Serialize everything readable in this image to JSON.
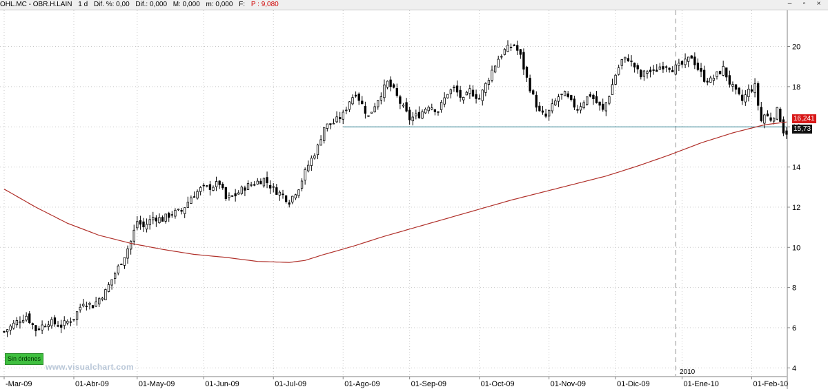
{
  "header": {
    "symbol": "OHL.MC - OBR.H.LAIN",
    "timeframe": "1 d",
    "dif_pct": "Dif. %: 0,00",
    "dif": "Dif.: 0,000",
    "max": "M: 0,000",
    "min": "m: 0,000",
    "f": "F:",
    "p": "P : 9,080"
  },
  "badges": {
    "no_orders": "Sin órdenes",
    "watermark": "www.visualchart.com",
    "year": "2010",
    "ma_value": "16,241",
    "last_value": "15,73"
  },
  "colors": {
    "candle_up": "#ffffff",
    "candle_down": "#000000",
    "moving_average": "#b0302a",
    "support_line": "#2a7f8f",
    "ma_tag": "#d81818",
    "last_tag": "#111111"
  },
  "chart_data": {
    "type": "candlestick",
    "ylim": [
      3.6,
      21.8
    ],
    "y_ticks": [
      "4",
      "6",
      "8",
      "10",
      "12",
      "14",
      "16",
      "18",
      "20"
    ],
    "x_ticks": [
      "-Mar-09",
      "01-Abr-09",
      "01-May-09",
      "01-Jun-09",
      "01-Jul-09",
      "01-Ago-09",
      "01-Sep-09",
      "01-Oct-09",
      "01-Nov-09",
      "01-Dic-09",
      "01-Ene-10",
      "01-Feb-10"
    ],
    "x_tick_index": [
      0,
      22,
      42,
      63,
      85,
      107,
      128,
      150,
      172,
      193,
      214,
      236
    ],
    "session_count": 248,
    "year_separator_index": 212,
    "close_path": [
      [
        0,
        5.8
      ],
      [
        4,
        6.3
      ],
      [
        7,
        6.6
      ],
      [
        10,
        5.9
      ],
      [
        14,
        6.3
      ],
      [
        18,
        6.1
      ],
      [
        22,
        6.5
      ],
      [
        25,
        7.3
      ],
      [
        28,
        7.1
      ],
      [
        32,
        7.8
      ],
      [
        35,
        8.7
      ],
      [
        38,
        9.6
      ],
      [
        40,
        10.3
      ],
      [
        42,
        11.3
      ],
      [
        44,
        11.0
      ],
      [
        47,
        11.5
      ],
      [
        50,
        11.4
      ],
      [
        53,
        11.7
      ],
      [
        56,
        11.8
      ],
      [
        59,
        12.5
      ],
      [
        62,
        12.9
      ],
      [
        65,
        13.0
      ],
      [
        68,
        13.2
      ],
      [
        70,
        12.4
      ],
      [
        73,
        12.6
      ],
      [
        76,
        13.0
      ],
      [
        79,
        13.2
      ],
      [
        82,
        13.4
      ],
      [
        85,
        12.9
      ],
      [
        88,
        12.6
      ],
      [
        90,
        12.3
      ],
      [
        93,
        13.0
      ],
      [
        96,
        14.1
      ],
      [
        99,
        15.0
      ],
      [
        101,
        16.0
      ],
      [
        104,
        16.2
      ],
      [
        107,
        16.6
      ],
      [
        109,
        17.3
      ],
      [
        111,
        17.7
      ],
      [
        113,
        17.1
      ],
      [
        115,
        16.5
      ],
      [
        118,
        17.4
      ],
      [
        121,
        18.2
      ],
      [
        123,
        17.8
      ],
      [
        125,
        17.2
      ],
      [
        128,
        16.4
      ],
      [
        131,
        16.6
      ],
      [
        134,
        17.1
      ],
      [
        137,
        16.8
      ],
      [
        140,
        17.7
      ],
      [
        142,
        17.9
      ],
      [
        145,
        17.3
      ],
      [
        147,
        17.8
      ],
      [
        150,
        17.4
      ],
      [
        152,
        18.1
      ],
      [
        154,
        18.8
      ],
      [
        156,
        19.4
      ],
      [
        158,
        19.8
      ],
      [
        161,
        20.1
      ],
      [
        163,
        19.5
      ],
      [
        165,
        18.4
      ],
      [
        167,
        17.5
      ],
      [
        169,
        16.7
      ],
      [
        171,
        16.5
      ],
      [
        173,
        17.0
      ],
      [
        175,
        17.5
      ],
      [
        177,
        17.6
      ],
      [
        179,
        17.2
      ],
      [
        181,
        16.9
      ],
      [
        183,
        17.3
      ],
      [
        185,
        17.6
      ],
      [
        187,
        17.2
      ],
      [
        189,
        16.8
      ],
      [
        191,
        17.6
      ],
      [
        193,
        18.6
      ],
      [
        195,
        19.3
      ],
      [
        197,
        19.4
      ],
      [
        199,
        19.0
      ],
      [
        201,
        18.5
      ],
      [
        203,
        18.8
      ],
      [
        205,
        18.7
      ],
      [
        207,
        19.0
      ],
      [
        209,
        19.1
      ],
      [
        211,
        18.9
      ],
      [
        213,
        19.0
      ],
      [
        215,
        19.2
      ],
      [
        217,
        19.5
      ],
      [
        219,
        18.9
      ],
      [
        221,
        18.4
      ],
      [
        223,
        18.3
      ],
      [
        225,
        18.6
      ],
      [
        227,
        18.9
      ],
      [
        229,
        18.2
      ],
      [
        231,
        17.7
      ],
      [
        233,
        17.3
      ],
      [
        235,
        17.8
      ],
      [
        237,
        18.0
      ],
      [
        238,
        17.1
      ],
      [
        239,
        16.3
      ],
      [
        240,
        16.6
      ],
      [
        242,
        16.4
      ],
      [
        244,
        16.8
      ],
      [
        245,
        16.4
      ],
      [
        246,
        15.8
      ],
      [
        247,
        15.73
      ]
    ],
    "moving_average": [
      [
        0,
        12.9
      ],
      [
        10,
        12.0
      ],
      [
        20,
        11.2
      ],
      [
        30,
        10.6
      ],
      [
        40,
        10.2
      ],
      [
        50,
        9.9
      ],
      [
        60,
        9.65
      ],
      [
        70,
        9.5
      ],
      [
        80,
        9.3
      ],
      [
        90,
        9.25
      ],
      [
        95,
        9.35
      ],
      [
        100,
        9.6
      ],
      [
        110,
        10.05
      ],
      [
        120,
        10.55
      ],
      [
        130,
        11.0
      ],
      [
        140,
        11.45
      ],
      [
        150,
        11.9
      ],
      [
        160,
        12.35
      ],
      [
        170,
        12.75
      ],
      [
        180,
        13.15
      ],
      [
        190,
        13.55
      ],
      [
        200,
        14.05
      ],
      [
        210,
        14.6
      ],
      [
        220,
        15.2
      ],
      [
        230,
        15.7
      ],
      [
        240,
        16.1
      ],
      [
        247,
        16.241
      ]
    ],
    "support_level": 16.0,
    "support_from_index": 107,
    "last_close": 15.73,
    "ma_last": 16.241
  }
}
